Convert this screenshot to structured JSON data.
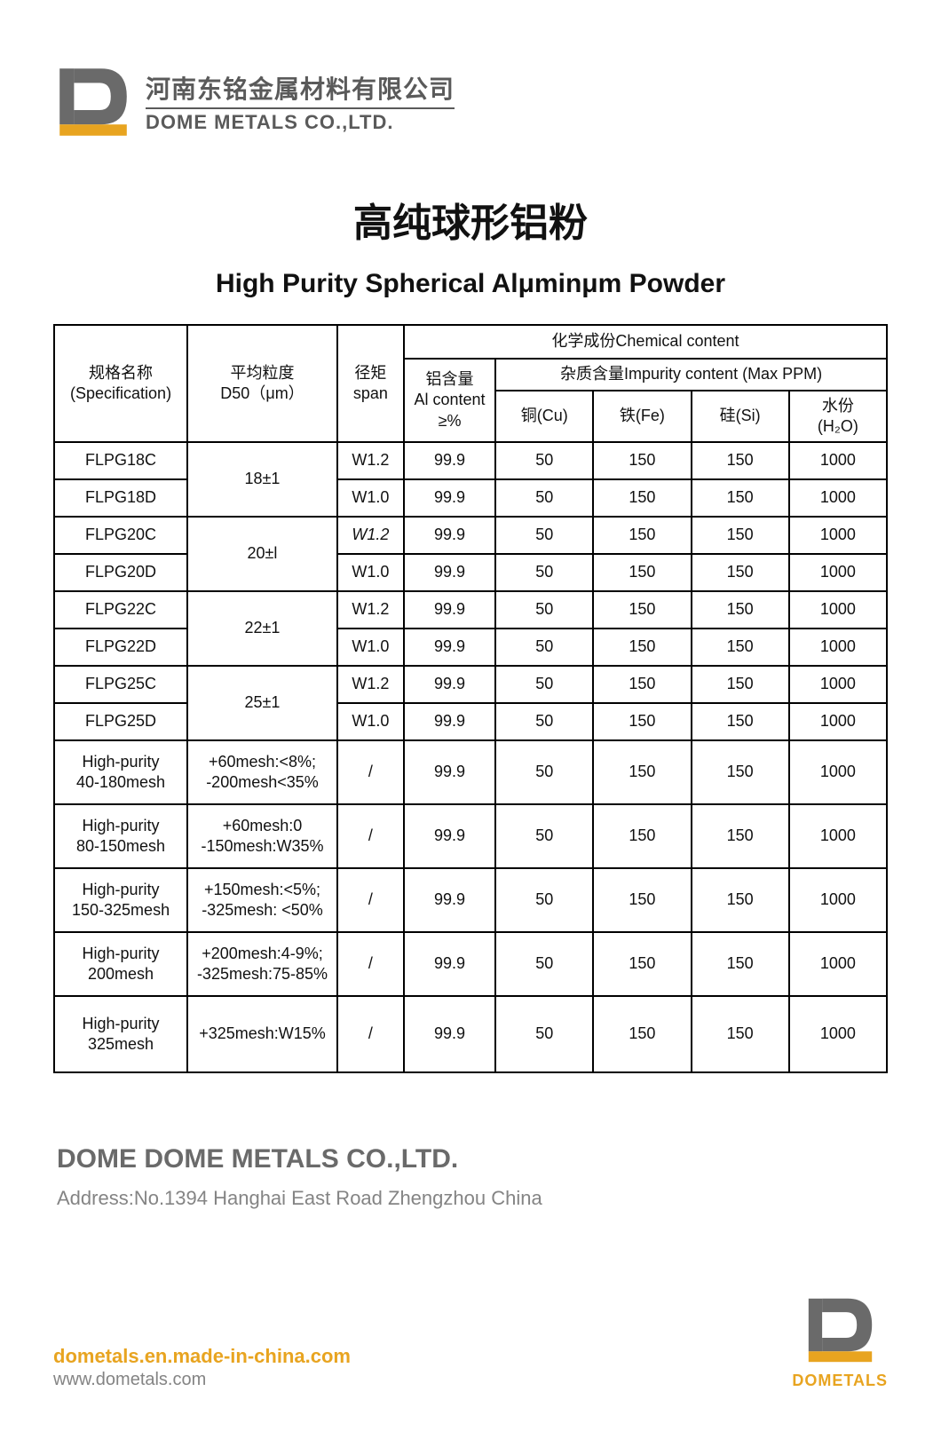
{
  "colors": {
    "brand_orange": "#e8a420",
    "brand_gray": "#5a5a5a",
    "text_dark": "#111111",
    "text_muted": "#848484",
    "border": "#000000",
    "background": "#ffffff"
  },
  "typography": {
    "title_cn_fontsize": 44,
    "title_en_fontsize": 30,
    "table_fontsize": 18,
    "company_name_fontsize": 30
  },
  "logo": {
    "cn": "河南东铭金属材料有限公司",
    "en": "DOME METALS CO.,LTD."
  },
  "title": {
    "cn": "高纯球形铝粉",
    "en": "High Purity Spherical Alμminμm Powder"
  },
  "table": {
    "headers": {
      "spec": "规格名称\n(Specification)",
      "d50": "平均粒度\nD50（μm）",
      "span": "径矩\nspan",
      "chem_group": "化学成份Chemical content",
      "al": "铝含量\nAl content\n≥%",
      "impurity_group": "杂质含量Impurity content (Max PPM)",
      "cu": "铜(Cu)",
      "fe": "铁(Fe)",
      "si": "硅(Si)",
      "h2o": "水份\n(H₂O)"
    },
    "groups": [
      {
        "d50": "18±1",
        "rows": [
          {
            "spec": "FLPG18C",
            "span": "W1.2",
            "al": "99.9",
            "cu": "50",
            "fe": "150",
            "si": "150",
            "h2o": "1000"
          },
          {
            "spec": "FLPG18D",
            "span": "W1.0",
            "al": "99.9",
            "cu": "50",
            "fe": "150",
            "si": "150",
            "h2o": "1000"
          }
        ]
      },
      {
        "d50": "20±l",
        "rows": [
          {
            "spec": "FLPG20C",
            "span": "W1.2",
            "span_italic": true,
            "al": "99.9",
            "cu": "50",
            "fe": "150",
            "si": "150",
            "h2o": "1000"
          },
          {
            "spec": "FLPG20D",
            "span": "W1.0",
            "al": "99.9",
            "cu": "50",
            "fe": "150",
            "si": "150",
            "h2o": "1000"
          }
        ]
      },
      {
        "d50": "22±1",
        "rows": [
          {
            "spec": "FLPG22C",
            "span": "W1.2",
            "al": "99.9",
            "cu": "50",
            "fe": "150",
            "si": "150",
            "h2o": "1000"
          },
          {
            "spec": "FLPG22D",
            "span": "W1.0",
            "al": "99.9",
            "cu": "50",
            "fe": "150",
            "si": "150",
            "h2o": "1000"
          }
        ]
      },
      {
        "d50": "25±1",
        "rows": [
          {
            "spec": "FLPG25C",
            "span": "W1.2",
            "al": "99.9",
            "cu": "50",
            "fe": "150",
            "si": "150",
            "h2o": "1000"
          },
          {
            "spec": "FLPG25D",
            "span": "W1.0",
            "al": "99.9",
            "cu": "50",
            "fe": "150",
            "si": "150",
            "h2o": "1000"
          }
        ]
      }
    ],
    "single_rows": [
      {
        "spec": "High-purity\n40-180mesh",
        "d50": "+60mesh:<8%;\n-200mesh<35%",
        "span": "/",
        "al": "99.9",
        "cu": "50",
        "fe": "150",
        "si": "150",
        "h2o": "1000"
      },
      {
        "spec": "High-purity\n80-150mesh",
        "d50": "+60mesh:0\n-150mesh:W35%",
        "span": "/",
        "al": "99.9",
        "cu": "50",
        "fe": "150",
        "si": "150",
        "h2o": "1000"
      },
      {
        "spec": "High-purity\n150-325mesh",
        "d50": "+150mesh:<5%;\n-325mesh: <50%",
        "span": "/",
        "al": "99.9",
        "cu": "50",
        "fe": "150",
        "si": "150",
        "h2o": "1000"
      },
      {
        "spec": "High-purity\n200mesh",
        "d50": "+200mesh:4-9%;\n-325mesh:75-85%",
        "span": "/",
        "al": "99.9",
        "cu": "50",
        "fe": "150",
        "si": "150",
        "h2o": "1000"
      },
      {
        "spec": "High-purity\n325mesh",
        "d50": "+325mesh:W15%",
        "span": "/",
        "al": "99.9",
        "cu": "50",
        "fe": "150",
        "si": "150",
        "h2o": "1000"
      }
    ]
  },
  "company": {
    "name": "DOME DOME METALS CO.,LTD.",
    "address": "Address:No.1394 Hanghai East Road Zhengzhou China"
  },
  "footer": {
    "link1": "dometals.en.made-in-china.com",
    "link2": "www.dometals.com",
    "logo_label": "DOMETALS"
  }
}
